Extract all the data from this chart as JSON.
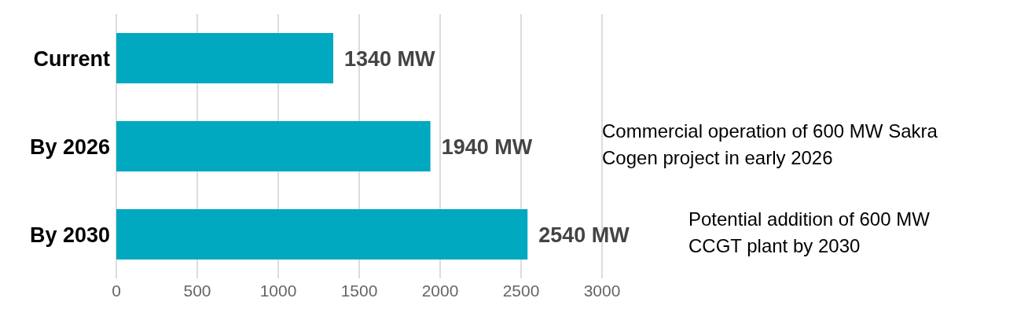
{
  "chart_data": {
    "type": "bar",
    "orientation": "horizontal",
    "categories": [
      "Current",
      "By 2026",
      "By 2030"
    ],
    "values": [
      1340,
      1940,
      2540
    ],
    "color": "#00a8c0",
    "value_labels": [
      "1340 MW",
      "1940 MW",
      "2540 MW"
    ],
    "xlim": [
      0,
      3000
    ],
    "xticks": [
      0,
      500,
      1000,
      1500,
      2000,
      2500,
      3000
    ],
    "grid": "x",
    "legend": false,
    "annotations": [
      "Commercial operation of 600 MW Sakra Cogen project in early 2026",
      "Potential addition of 600 MW CCGT plant by 2030"
    ]
  }
}
